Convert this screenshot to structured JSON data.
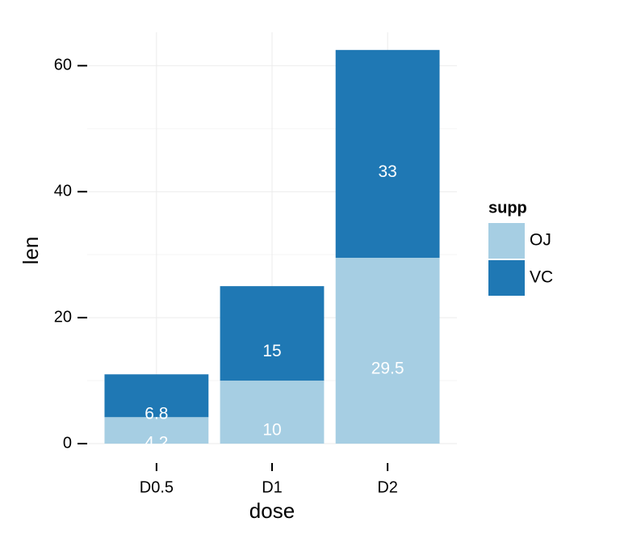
{
  "chart_data": {
    "type": "stacked_bar",
    "x_label": "dose",
    "y_label": "len",
    "categories": [
      "D0.5",
      "D1",
      "D2"
    ],
    "series": [
      {
        "name": "OJ",
        "color": "#a6cee3",
        "values": [
          4.2,
          10,
          29.5
        ]
      },
      {
        "name": "VC",
        "color": "#1f78b4",
        "values": [
          6.8,
          15,
          33
        ]
      }
    ],
    "legend_title": "supp",
    "ylim": [
      0,
      65.3
    ],
    "yticks": [
      0,
      20,
      40,
      60
    ],
    "grid": true
  }
}
